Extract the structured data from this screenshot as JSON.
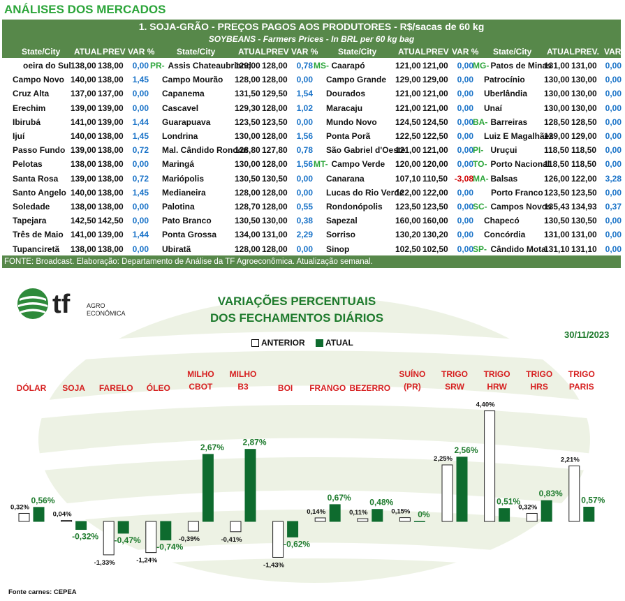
{
  "page_title": "ANÁLISES DOS MERCADOS",
  "table": {
    "title": "1. SOJA-GRÃO - PREÇOS PAGOS AOS PRODUTORES - R$/sacas de 60 kg",
    "subtitle": "SOYBEANS - Farmers Prices - In BRL per 60 kg bag",
    "header_groups": [
      {
        "city": "State/City",
        "atual": "ATUAL",
        "prev": "PREV",
        "var": "VAR %"
      },
      {
        "city": "State/City",
        "atual": "ATUAL",
        "prev": "PREV",
        "var": "VAR %"
      },
      {
        "city": "State/City",
        "atual": "ATUAL",
        "prev": "PREV",
        "var": "VAR %"
      },
      {
        "city": "State/City",
        "atual": "ATUAL",
        "prev": "PREV.",
        "var": "VAR %"
      }
    ],
    "groups": [
      {
        "rows": [
          {
            "state": "",
            "city": "oeira do Sul",
            "atual": "138,00",
            "prev": "138,00",
            "var": "0,00"
          },
          {
            "state": "",
            "city": "Campo Novo",
            "atual": "140,00",
            "prev": "138,00",
            "var": "1,45"
          },
          {
            "state": "",
            "city": "Cruz Alta",
            "atual": "137,00",
            "prev": "137,00",
            "var": "0,00"
          },
          {
            "state": "",
            "city": "Erechim",
            "atual": "139,00",
            "prev": "139,00",
            "var": "0,00"
          },
          {
            "state": "",
            "city": "Ibirubá",
            "atual": "141,00",
            "prev": "139,00",
            "var": "1,44"
          },
          {
            "state": "",
            "city": "Ijuí",
            "atual": "140,00",
            "prev": "138,00",
            "var": "1,45"
          },
          {
            "state": "",
            "city": "Passo Fundo",
            "atual": "139,00",
            "prev": "138,00",
            "var": "0,72"
          },
          {
            "state": "",
            "city": "Pelotas",
            "atual": "138,00",
            "prev": "138,00",
            "var": "0,00"
          },
          {
            "state": "",
            "city": "Santa Rosa",
            "atual": "139,00",
            "prev": "138,00",
            "var": "0,72"
          },
          {
            "state": "",
            "city": "Santo Angelo",
            "atual": "140,00",
            "prev": "138,00",
            "var": "1,45"
          },
          {
            "state": "",
            "city": "Soledade",
            "atual": "138,00",
            "prev": "138,00",
            "var": "0,00"
          },
          {
            "state": "",
            "city": "Tapejara",
            "atual": "142,50",
            "prev": "142,50",
            "var": "0,00"
          },
          {
            "state": "",
            "city": "Três de Maio",
            "atual": "141,00",
            "prev": "139,00",
            "var": "1,44"
          },
          {
            "state": "",
            "city": "Tupanciretã",
            "atual": "138,00",
            "prev": "138,00",
            "var": "0,00"
          }
        ]
      },
      {
        "rows": [
          {
            "state": "PR-",
            "city": "Assis Chateaubriand",
            "atual": "129,00",
            "prev": "128,00",
            "var": "0,78"
          },
          {
            "state": "",
            "city": "Campo Mourão",
            "atual": "128,00",
            "prev": "128,00",
            "var": "0,00"
          },
          {
            "state": "",
            "city": "Capanema",
            "atual": "131,50",
            "prev": "129,50",
            "var": "1,54"
          },
          {
            "state": "",
            "city": "Cascavel",
            "atual": "129,30",
            "prev": "128,00",
            "var": "1,02"
          },
          {
            "state": "",
            "city": "Guarapuava",
            "atual": "123,50",
            "prev": "123,50",
            "var": "0,00"
          },
          {
            "state": "",
            "city": "Londrina",
            "atual": "130,00",
            "prev": "128,00",
            "var": "1,56"
          },
          {
            "state": "",
            "city": "Mal. Cândido Rondon",
            "atual": "128,80",
            "prev": "127,80",
            "var": "0,78"
          },
          {
            "state": "",
            "city": "Maringá",
            "atual": "130,00",
            "prev": "128,00",
            "var": "1,56"
          },
          {
            "state": "",
            "city": "Mariópolis",
            "atual": "130,50",
            "prev": "130,50",
            "var": "0,00"
          },
          {
            "state": "",
            "city": "Medianeira",
            "atual": "128,00",
            "prev": "128,00",
            "var": "0,00"
          },
          {
            "state": "",
            "city": "Palotina",
            "atual": "128,70",
            "prev": "128,00",
            "var": "0,55"
          },
          {
            "state": "",
            "city": "Pato Branco",
            "atual": "130,50",
            "prev": "130,00",
            "var": "0,38"
          },
          {
            "state": "",
            "city": "Ponta Grossa",
            "atual": "134,00",
            "prev": "131,00",
            "var": "2,29"
          },
          {
            "state": "",
            "city": "Ubiratã",
            "atual": "128,00",
            "prev": "128,00",
            "var": "0,00"
          }
        ]
      },
      {
        "rows": [
          {
            "state": "MS-",
            "city": "Caarapó",
            "atual": "121,00",
            "prev": "121,00",
            "var": "0,00"
          },
          {
            "state": "",
            "city": "Campo Grande",
            "atual": "129,00",
            "prev": "129,00",
            "var": "0,00"
          },
          {
            "state": "",
            "city": "Dourados",
            "atual": "121,00",
            "prev": "121,00",
            "var": "0,00"
          },
          {
            "state": "",
            "city": "Maracaju",
            "atual": "121,00",
            "prev": "121,00",
            "var": "0,00"
          },
          {
            "state": "",
            "city": "Mundo Novo",
            "atual": "124,50",
            "prev": "124,50",
            "var": "0,00"
          },
          {
            "state": "",
            "city": "Ponta Porã",
            "atual": "122,50",
            "prev": "122,50",
            "var": "0,00"
          },
          {
            "state": "",
            "city": "São Gabriel d'Oeste",
            "atual": "121,00",
            "prev": "121,00",
            "var": "0,00"
          },
          {
            "state": "MT-",
            "city": "Campo Verde",
            "atual": "120,00",
            "prev": "120,00",
            "var": "0,00"
          },
          {
            "state": "",
            "city": "Canarana",
            "atual": "107,10",
            "prev": "110,50",
            "var": "-3,08"
          },
          {
            "state": "",
            "city": "Lucas do Rio Verde",
            "atual": "122,00",
            "prev": "122,00",
            "var": "0,00"
          },
          {
            "state": "",
            "city": "Rondonópolis",
            "atual": "123,50",
            "prev": "123,50",
            "var": "0,00"
          },
          {
            "state": "",
            "city": "Sapezal",
            "atual": "160,00",
            "prev": "160,00",
            "var": "0,00"
          },
          {
            "state": "",
            "city": "Sorriso",
            "atual": "130,20",
            "prev": "130,20",
            "var": "0,00"
          },
          {
            "state": "",
            "city": "Sinop",
            "atual": "102,50",
            "prev": "102,50",
            "var": "0,00"
          }
        ]
      },
      {
        "rows": [
          {
            "state": "MG-",
            "city": "Patos de Minas",
            "atual": "131,00",
            "prev": "131,00",
            "var": "0,00"
          },
          {
            "state": "",
            "city": "Patrocínio",
            "atual": "130,00",
            "prev": "130,00",
            "var": "0,00"
          },
          {
            "state": "",
            "city": "Uberlândia",
            "atual": "130,00",
            "prev": "130,00",
            "var": "0,00"
          },
          {
            "state": "",
            "city": "Unaí",
            "atual": "130,00",
            "prev": "130,00",
            "var": "0,00"
          },
          {
            "state": "BA-",
            "city": "Barreiras",
            "atual": "128,50",
            "prev": "128,50",
            "var": "0,00"
          },
          {
            "state": "",
            "city": "Luiz E Magalhães",
            "atual": "129,00",
            "prev": "129,00",
            "var": "0,00"
          },
          {
            "state": "PI-",
            "city": "Uruçui",
            "atual": "118,50",
            "prev": "118,50",
            "var": "0,00"
          },
          {
            "state": "TO-",
            "city": "Porto Nacional",
            "atual": "118,50",
            "prev": "118,50",
            "var": "0,00"
          },
          {
            "state": "MA-",
            "city": "Balsas",
            "atual": "126,00",
            "prev": "122,00",
            "var": "3,28"
          },
          {
            "state": "",
            "city": "Porto Franco",
            "atual": "123,50",
            "prev": "123,50",
            "var": "0,00"
          },
          {
            "state": "SC-",
            "city": "Campos Novos",
            "atual": "135,43",
            "prev": "134,93",
            "var": "0,37"
          },
          {
            "state": "",
            "city": "Chapecó",
            "atual": "130,50",
            "prev": "130,50",
            "var": "0,00"
          },
          {
            "state": "",
            "city": "Concórdia",
            "atual": "131,00",
            "prev": "131,00",
            "var": "0,00"
          },
          {
            "state": "SP-",
            "city": "Cândido Mota",
            "atual": "131,10",
            "prev": "131,10",
            "var": "0,00"
          }
        ]
      }
    ],
    "source": "FONTE: Broadcast. Elaboração: Departamento de Análise da TF Agroeconômica. Atualização semanal."
  },
  "logo": {
    "mark": "tf",
    "line1": "AGRO",
    "line2": "ECONÔMICA"
  },
  "chart_data": {
    "type": "bar",
    "title": "VARIAÇÕES PERCENTUAIS",
    "subtitle": "DOS FECHAMENTOS DIÁRIOS",
    "date": "30/11/2023",
    "legend_position": "top-center",
    "grid": false,
    "categories": [
      [
        "DÓLAR"
      ],
      [
        "SOJA"
      ],
      [
        "FARELO"
      ],
      [
        "ÓLEO"
      ],
      [
        "MILHO",
        "CBOT"
      ],
      [
        "MILHO",
        "B3"
      ],
      [
        "BOI"
      ],
      [
        "FRANGO"
      ],
      [
        "BEZERRO"
      ],
      [
        "SUÍNO",
        "(PR)"
      ],
      [
        "TRIGO",
        "SRW"
      ],
      [
        "TRIGO",
        "HRW"
      ],
      [
        "TRIGO",
        "HRS"
      ],
      [
        "TRIGO",
        "PARIS"
      ]
    ],
    "series": [
      {
        "name": "ANTERIOR",
        "color": "#ffffff",
        "values": [
          0.32,
          0.04,
          -1.33,
          -1.24,
          -0.39,
          -0.41,
          -1.43,
          0.14,
          0.11,
          0.15,
          2.25,
          4.4,
          0.32,
          2.21
        ],
        "labels": [
          "0,32%",
          "0,04%",
          "-1,33%",
          "-1,24%",
          "-0,39%",
          "-0,41%",
          "-1,43%",
          "0,14%",
          "0,11%",
          "0,15%",
          "2,25%",
          "4,40%",
          "0,32%",
          "2,21%"
        ]
      },
      {
        "name": "ATUAL",
        "color": "#0e6b2e",
        "values": [
          0.56,
          -0.32,
          -0.47,
          -0.74,
          2.67,
          2.87,
          -0.62,
          0.67,
          0.48,
          0,
          2.56,
          0.51,
          0.83,
          0.57
        ],
        "labels": [
          "0,56%",
          "-0,32%",
          "-0,47%",
          "-0,74%",
          "2,67%",
          "2,87%",
          "-0,62%",
          "0,67%",
          "0,48%",
          "0%",
          "2,56%",
          "0,51%",
          "0,83%",
          "0,57%"
        ]
      }
    ],
    "footnote": "Fonte carnes: CEPEA"
  }
}
